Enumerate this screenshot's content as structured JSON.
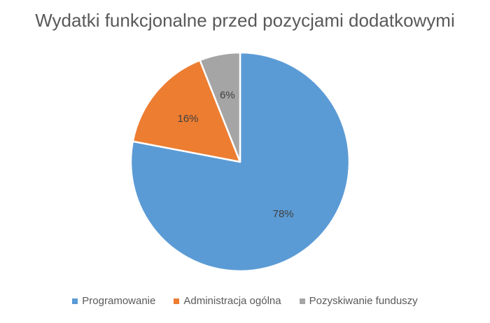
{
  "chart_data": {
    "type": "pie",
    "title": "Wydatki funkcjonalne przed pozycjami dodatkowymi",
    "categories": [
      "Programowanie",
      "Administracja ogólna",
      "Pozyskiwanie funduszy"
    ],
    "values": [
      78,
      16,
      6
    ],
    "labels": [
      "78%",
      "16%",
      "6%"
    ],
    "colors": [
      "#5B9BD5",
      "#ED7D31",
      "#A5A5A5"
    ],
    "legend_position": "bottom"
  }
}
